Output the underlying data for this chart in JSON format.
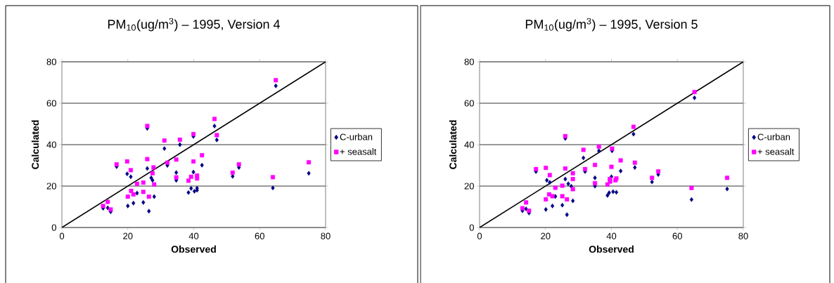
{
  "chart_data": [
    {
      "type": "scatter",
      "title": "PM$_{10}$(ug/m$^{3}$) – 1995, Version 4",
      "xlabel": "Observed",
      "ylabel": "Calculated",
      "xlim": [
        0,
        80
      ],
      "ylim": [
        0,
        80
      ],
      "xticks": [
        0,
        20,
        40,
        60,
        80
      ],
      "yticks": [
        0,
        20,
        40,
        60,
        80
      ],
      "grid": "y",
      "legend": "right",
      "series": [
        {
          "name": "C-urban",
          "color": "#000080",
          "marker": "diamond",
          "x": [
            12.5,
            13.9,
            14.8,
            16.6,
            19.8,
            20.0,
            20.9,
            21.7,
            22.8,
            24.7,
            25.9,
            25.9,
            26.4,
            27.1,
            27.5,
            28.0,
            31.1,
            32.0,
            34.7,
            34.7,
            35.8,
            38.4,
            39.2,
            39.9,
            39.9,
            40.2,
            41.0,
            41.0,
            42.5,
            46.3,
            47.0,
            51.8,
            53.7,
            64.0,
            64.9,
            74.9
          ],
          "values": [
            9.3,
            9.5,
            7.6,
            29.4,
            25.9,
            10.4,
            24.5,
            11.8,
            16.6,
            12.1,
            47.9,
            28.5,
            7.9,
            24.0,
            22.8,
            14.9,
            38.1,
            30.0,
            22.8,
            26.5,
            40.0,
            16.9,
            18.9,
            44.0,
            26.8,
            17.5,
            18.0,
            19.0,
            30.1,
            49.0,
            42.3,
            24.7,
            29.0,
            19.1,
            68.4,
            26.2
          ]
        },
        {
          "name": "+ seasalt",
          "color": "#ff00ff",
          "marker": "square",
          "x": [
            12.5,
            13.9,
            14.8,
            16.6,
            19.8,
            20.0,
            20.9,
            21.0,
            21.7,
            22.8,
            24.7,
            24.7,
            25.9,
            25.9,
            26.4,
            27.8,
            27.5,
            28.0,
            31.1,
            32.0,
            34.7,
            34.7,
            35.8,
            38.4,
            39.2,
            39.9,
            39.9,
            41.0,
            41.0,
            42.5,
            46.3,
            47.0,
            51.8,
            53.7,
            64.0,
            64.9,
            74.9
          ],
          "values": [
            10.4,
            12.4,
            8.7,
            30.5,
            31.9,
            14.9,
            27.7,
            17.7,
            16.0,
            21.1,
            21.7,
            17.2,
            49.0,
            33.0,
            14.9,
            29.0,
            26.2,
            20.8,
            42.0,
            31.3,
            24.2,
            32.8,
            42.4,
            22.6,
            24.5,
            45.1,
            31.9,
            25.1,
            23.7,
            34.9,
            52.4,
            44.6,
            26.5,
            30.5,
            24.3,
            71.1,
            31.5
          ]
        },
        {
          "type": "line",
          "color": "#000000",
          "marker": "none",
          "x": [
            0,
            80
          ],
          "values": [
            0,
            80
          ]
        }
      ]
    },
    {
      "type": "scatter",
      "title": "PM$_{10}$(ug/m$^{3}$) – 1995, Version 5",
      "xlabel": "Observed",
      "ylabel": "Calculated",
      "xlim": [
        0,
        80
      ],
      "ylim": [
        0,
        80
      ],
      "xticks": [
        0,
        20,
        40,
        60,
        80
      ],
      "yticks": [
        0,
        20,
        40,
        60,
        80
      ],
      "grid": "y",
      "legend": "right",
      "series": [
        {
          "name": "C-urban",
          "color": "#000080",
          "marker": "diamond",
          "x": [
            13.0,
            14.1,
            15.0,
            17.1,
            20.1,
            20.4,
            21.3,
            22.1,
            23.0,
            25.1,
            26.0,
            26.0,
            26.5,
            26.9,
            28.3,
            27.8,
            31.5,
            32.0,
            36.2,
            35.0,
            35.0,
            38.8,
            40.2,
            40.0,
            39.3,
            40.5,
            41.5,
            42.8,
            46.7,
            47.1,
            52.3,
            54.2,
            64.3,
            65.2,
            75.1
          ],
          "values": [
            8.1,
            9.0,
            7.0,
            27.0,
            8.7,
            22.8,
            21.8,
            10.4,
            15.0,
            10.8,
            43.0,
            23.4,
            6.2,
            21.1,
            12.9,
            19.9,
            33.6,
            27.0,
            37.0,
            24.0,
            20.0,
            15.5,
            37.0,
            24.5,
            16.8,
            17.3,
            17.0,
            27.3,
            45.1,
            29.0,
            22.0,
            25.6,
            13.5,
            62.6,
            18.6
          ]
        },
        {
          "name": "+ seasalt",
          "color": "#ff00ff",
          "marker": "square",
          "x": [
            13.0,
            14.1,
            15.0,
            17.1,
            20.1,
            20.1,
            21.3,
            21.1,
            22.1,
            23.0,
            25.1,
            25.1,
            26.0,
            26.0,
            26.5,
            28.3,
            28.3,
            28.3,
            31.5,
            32.0,
            36.2,
            35.0,
            35.0,
            38.8,
            40.2,
            40.0,
            39.5,
            39.6,
            41.5,
            41.2,
            42.8,
            46.7,
            47.1,
            52.3,
            54.2,
            64.3,
            65.2,
            75.1
          ],
          "values": [
            9.3,
            12.1,
            8.1,
            28.2,
            28.8,
            13.6,
            25.3,
            16.0,
            15.1,
            19.2,
            20.2,
            15.1,
            44.1,
            28.5,
            13.6,
            26.2,
            23.4,
            18.5,
            37.5,
            28.2,
            39.0,
            30.2,
            21.4,
            20.8,
            38.1,
            29.3,
            23.4,
            22.2,
            23.7,
            22.8,
            32.4,
            48.6,
            31.3,
            24.0,
            27.1,
            19.1,
            65.4,
            24.0
          ]
        },
        {
          "type": "line",
          "color": "#000000",
          "marker": "none",
          "x": [
            0,
            80
          ],
          "values": [
            0,
            80
          ]
        }
      ]
    }
  ]
}
